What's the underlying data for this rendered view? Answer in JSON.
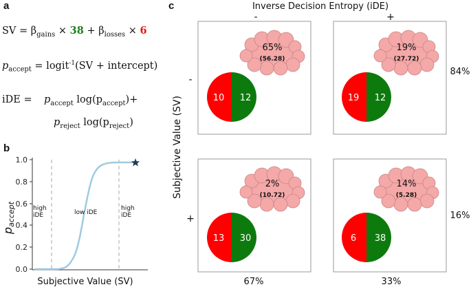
{
  "panel_a": {
    "label": "a",
    "eq1": {
      "lhs": "SV = β",
      "gains_sub": "gains",
      "times1": " × ",
      "gains_coef": "38",
      "plus": " + β",
      "losses_sub": "losses",
      "times2": " × ",
      "losses_coef": "6"
    },
    "eq2": {
      "p": "p",
      "p_sub": "accept",
      "rhs_a": " = logit",
      "sup": "-1",
      "rhs_b": "(SV + intercept)"
    },
    "eq3": {
      "lhs": "iDE =",
      "p1": "p",
      "p1_sub": "accept",
      "log1": " log(p",
      "log1_sub": "accept",
      "close1": ")+"
    },
    "eq4": {
      "p": "p",
      "p_sub": "reject",
      "log": " log(p",
      "log_sub": "reject",
      "close": ")"
    },
    "colors": {
      "gains": "#1a7f1a",
      "losses": "#e01b1b"
    }
  },
  "panel_b": {
    "label": "b",
    "y_label_main": "p",
    "y_label_sub": "accept",
    "x_label": "Subjective Value (SV)",
    "y_ticks": [
      "0.0",
      "0.2",
      "0.4",
      "0.6",
      "0.8",
      "1.0"
    ],
    "annotations": [
      "high",
      "iDE",
      "low iDE",
      "high",
      "iDE"
    ],
    "curve_color": "#9ecae1",
    "star_color": "#1f3b57"
  },
  "panel_c": {
    "label": "c",
    "top_title": "Inverse Decision Entropy (iDE)",
    "left_title": "Subjective Value (SV)",
    "col_headers": [
      "-",
      "+"
    ],
    "row_headers": [
      "-",
      "+"
    ],
    "row_totals": [
      "84%",
      "16%"
    ],
    "col_totals": [
      "67%",
      "33%"
    ],
    "colors": {
      "red": "#ff0000",
      "green": "#0d7a0d",
      "brain": "#f4a8a8",
      "brain_stroke": "#c98585"
    },
    "cells": [
      {
        "pct": "65%",
        "val": "(56.28)",
        "red": "10",
        "green": "12"
      },
      {
        "pct": "19%",
        "val": "(27.72)",
        "red": "19",
        "green": "12"
      },
      {
        "pct": "2%",
        "val": "(10.72)",
        "red": "13",
        "green": "30"
      },
      {
        "pct": "14%",
        "val": "(5.28)",
        "red": "6",
        "green": "38"
      }
    ]
  }
}
